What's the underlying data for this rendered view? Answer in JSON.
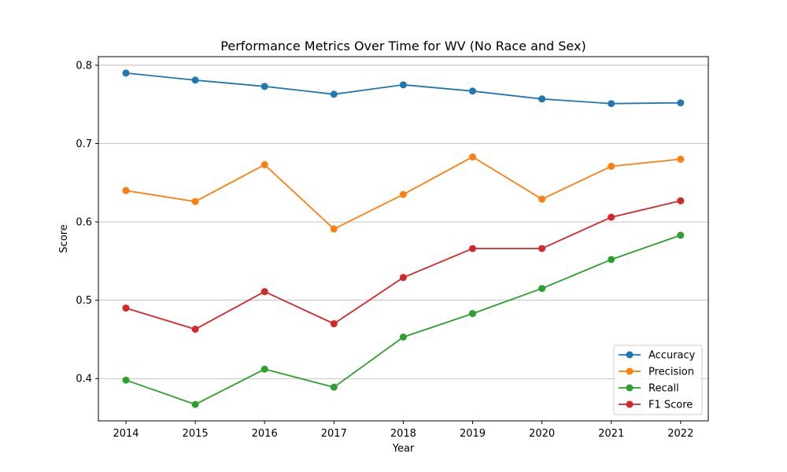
{
  "chart_data": {
    "type": "line",
    "title": "Performance Metrics Over Time for WV (No Race and Sex)",
    "xlabel": "Year",
    "ylabel": "Score",
    "categories": [
      "2014",
      "2015",
      "2016",
      "2017",
      "2018",
      "2019",
      "2020",
      "2021",
      "2022"
    ],
    "ylim": [
      0.346,
      0.811
    ],
    "yticks": [
      0.4,
      0.5,
      0.6,
      0.7,
      0.8
    ],
    "ytick_labels": [
      "0.4",
      "0.5",
      "0.6",
      "0.7",
      "0.8"
    ],
    "grid": "y-axis major",
    "legend_position": "lower-right",
    "series": [
      {
        "name": "Accuracy",
        "color": "#1f77b4",
        "values": [
          0.79,
          0.781,
          0.773,
          0.763,
          0.775,
          0.767,
          0.757,
          0.751,
          0.752
        ]
      },
      {
        "name": "Precision",
        "color": "#ff7f0e",
        "values": [
          0.64,
          0.626,
          0.673,
          0.591,
          0.635,
          0.683,
          0.629,
          0.671,
          0.68
        ]
      },
      {
        "name": "Recall",
        "color": "#2ca02c",
        "values": [
          0.398,
          0.367,
          0.412,
          0.389,
          0.453,
          0.483,
          0.515,
          0.552,
          0.583
        ]
      },
      {
        "name": "F1 Score",
        "color": "#d62728",
        "values": [
          0.49,
          0.463,
          0.511,
          0.47,
          0.529,
          0.566,
          0.566,
          0.606,
          0.627
        ]
      }
    ]
  }
}
